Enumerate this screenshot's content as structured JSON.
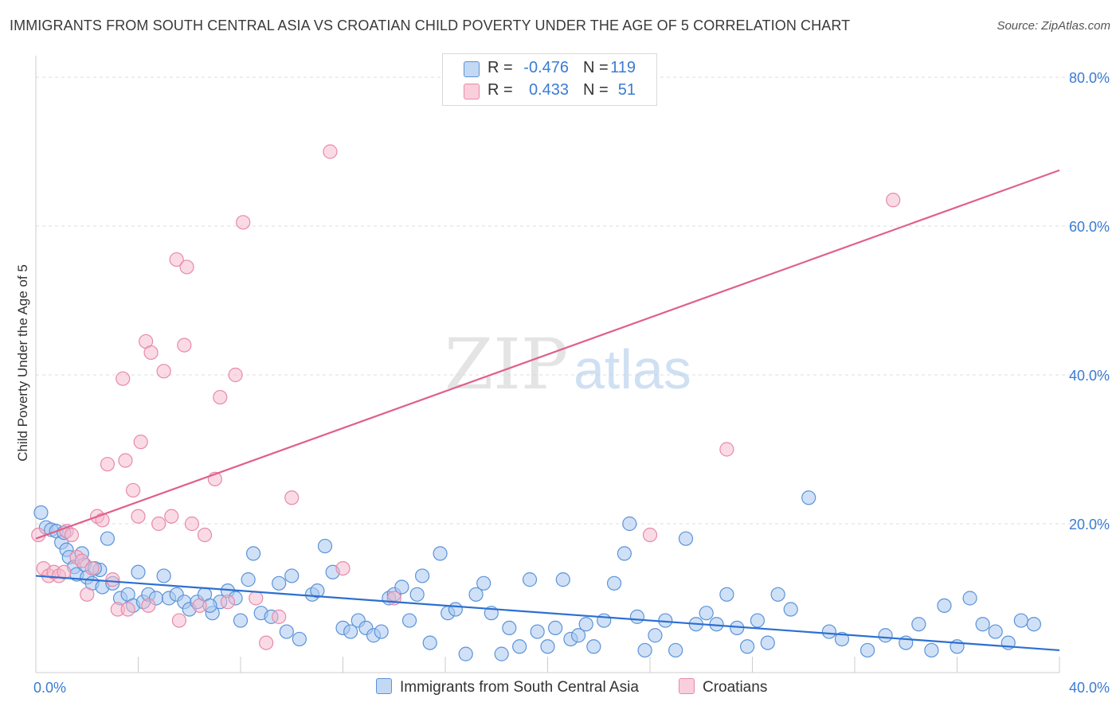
{
  "title": "IMMIGRANTS FROM SOUTH CENTRAL ASIA VS CROATIAN CHILD POVERTY UNDER THE AGE OF 5 CORRELATION CHART",
  "source": "Source: ZipAtlas.com",
  "watermark": {
    "zip": "ZIP",
    "atlas": "atlas"
  },
  "colors": {
    "blue_fill": "#a9c8f0",
    "blue_stroke": "#5b93d8",
    "blue_line": "#2c6fd1",
    "pink_fill": "#f6b8cb",
    "pink_stroke": "#e88aa8",
    "pink_line": "#e0608c",
    "axis_label": "#3a7bd5",
    "grid": "#dddddd"
  },
  "legend": {
    "rows": [
      {
        "r_label": "R =",
        "r_value": "-0.476",
        "n_label": "N =",
        "n_value": "119"
      },
      {
        "r_label": "R =",
        "r_value": "0.433",
        "n_label": "N =",
        "n_value": "51"
      }
    ]
  },
  "bottom_legend": {
    "series1": "Immigrants from South Central Asia",
    "series2": "Croatians"
  },
  "chart_data": {
    "type": "scatter",
    "title": "IMMIGRANTS FROM SOUTH CENTRAL ASIA VS CROATIAN CHILD POVERTY UNDER THE AGE OF 5 CORRELATION CHART",
    "xlabel": "",
    "ylabel": "Child Poverty Under the Age of 5",
    "xlim": [
      0,
      40
    ],
    "ylim": [
      0,
      80
    ],
    "x_tick_labels": [
      "0.0%",
      "40.0%"
    ],
    "y_tick_labels": [
      "20.0%",
      "40.0%",
      "60.0%",
      "80.0%"
    ],
    "y_ticks": [
      20,
      40,
      60,
      80
    ],
    "grid": true,
    "series": [
      {
        "name": "Immigrants from South Central Asia",
        "color": "#a9c8f0",
        "trend": {
          "x0": 0,
          "y0": 13.0,
          "x1": 40,
          "y1": 3.0
        },
        "points": [
          [
            0.2,
            21.5
          ],
          [
            0.4,
            19.5
          ],
          [
            0.6,
            19.2
          ],
          [
            0.8,
            19.0
          ],
          [
            1.0,
            17.5
          ],
          [
            1.2,
            16.5
          ],
          [
            1.3,
            15.5
          ],
          [
            1.5,
            14.2
          ],
          [
            1.6,
            13.2
          ],
          [
            1.8,
            16.0
          ],
          [
            1.9,
            14.5
          ],
          [
            2.0,
            12.8
          ],
          [
            2.2,
            12.0
          ],
          [
            2.5,
            13.8
          ],
          [
            2.6,
            11.5
          ],
          [
            2.8,
            18.0
          ],
          [
            3.0,
            12.0
          ],
          [
            3.3,
            10.0
          ],
          [
            3.6,
            10.5
          ],
          [
            3.8,
            9.0
          ],
          [
            4.0,
            13.5
          ],
          [
            4.2,
            9.5
          ],
          [
            4.4,
            10.5
          ],
          [
            4.7,
            10.0
          ],
          [
            5.0,
            13.0
          ],
          [
            5.2,
            10.0
          ],
          [
            5.5,
            10.5
          ],
          [
            5.8,
            9.5
          ],
          [
            6.0,
            8.5
          ],
          [
            6.3,
            9.5
          ],
          [
            6.6,
            10.5
          ],
          [
            6.9,
            8.0
          ],
          [
            7.2,
            9.5
          ],
          [
            7.5,
            11.0
          ],
          [
            7.8,
            10.0
          ],
          [
            8.0,
            7.0
          ],
          [
            8.3,
            12.5
          ],
          [
            8.5,
            16.0
          ],
          [
            8.8,
            8.0
          ],
          [
            9.2,
            7.5
          ],
          [
            9.5,
            12.0
          ],
          [
            10.0,
            13.0
          ],
          [
            10.3,
            4.5
          ],
          [
            10.8,
            10.5
          ],
          [
            11.0,
            11.0
          ],
          [
            11.3,
            17.0
          ],
          [
            11.6,
            13.5
          ],
          [
            12.0,
            6.0
          ],
          [
            12.3,
            5.5
          ],
          [
            12.6,
            7.0
          ],
          [
            12.9,
            6.0
          ],
          [
            13.2,
            5.0
          ],
          [
            13.5,
            5.5
          ],
          [
            13.8,
            10.0
          ],
          [
            14.0,
            10.5
          ],
          [
            14.3,
            11.5
          ],
          [
            14.6,
            7.0
          ],
          [
            14.9,
            10.5
          ],
          [
            15.1,
            13.0
          ],
          [
            15.4,
            4.0
          ],
          [
            15.8,
            16.0
          ],
          [
            16.1,
            8.0
          ],
          [
            16.4,
            8.5
          ],
          [
            16.8,
            2.5
          ],
          [
            17.2,
            10.5
          ],
          [
            17.5,
            12.0
          ],
          [
            17.8,
            8.0
          ],
          [
            18.2,
            2.5
          ],
          [
            18.5,
            6.0
          ],
          [
            18.9,
            3.5
          ],
          [
            19.3,
            12.5
          ],
          [
            19.6,
            5.5
          ],
          [
            20.0,
            3.5
          ],
          [
            20.3,
            6.0
          ],
          [
            20.6,
            12.5
          ],
          [
            20.9,
            4.5
          ],
          [
            21.2,
            5.0
          ],
          [
            21.5,
            6.5
          ],
          [
            21.8,
            3.5
          ],
          [
            22.2,
            7.0
          ],
          [
            22.6,
            12.0
          ],
          [
            23.0,
            16.0
          ],
          [
            23.2,
            20.0
          ],
          [
            23.5,
            7.5
          ],
          [
            23.8,
            3.0
          ],
          [
            24.2,
            5.0
          ],
          [
            24.6,
            7.0
          ],
          [
            25.0,
            3.0
          ],
          [
            25.4,
            18.0
          ],
          [
            25.8,
            6.5
          ],
          [
            26.2,
            8.0
          ],
          [
            26.6,
            6.5
          ],
          [
            27.0,
            10.5
          ],
          [
            27.4,
            6.0
          ],
          [
            27.8,
            3.5
          ],
          [
            28.2,
            7.0
          ],
          [
            28.6,
            4.0
          ],
          [
            29.0,
            10.5
          ],
          [
            29.5,
            8.5
          ],
          [
            30.2,
            23.5
          ],
          [
            31.0,
            5.5
          ],
          [
            31.5,
            4.5
          ],
          [
            32.5,
            3.0
          ],
          [
            33.2,
            5.0
          ],
          [
            34.0,
            4.0
          ],
          [
            34.5,
            6.5
          ],
          [
            35.0,
            3.0
          ],
          [
            35.5,
            9.0
          ],
          [
            36.0,
            3.5
          ],
          [
            36.5,
            10.0
          ],
          [
            37.0,
            6.5
          ],
          [
            37.5,
            5.5
          ],
          [
            38.0,
            4.0
          ],
          [
            38.5,
            7.0
          ],
          [
            39.0,
            6.5
          ],
          [
            1.1,
            18.8
          ],
          [
            2.3,
            14.0
          ],
          [
            6.8,
            9.0
          ],
          [
            9.8,
            5.5
          ]
        ]
      },
      {
        "name": "Croatians",
        "color": "#f6b8cb",
        "trend": {
          "x0": 0,
          "y0": 18.0,
          "x1": 40,
          "y1": 67.5
        },
        "points": [
          [
            0.1,
            18.5
          ],
          [
            0.3,
            14.0
          ],
          [
            0.5,
            13.0
          ],
          [
            0.7,
            13.5
          ],
          [
            0.9,
            13.0
          ],
          [
            1.1,
            13.5
          ],
          [
            1.2,
            19.0
          ],
          [
            1.4,
            18.5
          ],
          [
            1.6,
            15.5
          ],
          [
            1.8,
            15.0
          ],
          [
            2.0,
            10.5
          ],
          [
            2.2,
            14.0
          ],
          [
            2.4,
            21.0
          ],
          [
            2.6,
            20.5
          ],
          [
            2.8,
            28.0
          ],
          [
            3.0,
            12.5
          ],
          [
            3.2,
            8.5
          ],
          [
            3.4,
            39.5
          ],
          [
            3.5,
            28.5
          ],
          [
            3.6,
            8.5
          ],
          [
            3.8,
            24.5
          ],
          [
            4.0,
            21.0
          ],
          [
            4.1,
            31.0
          ],
          [
            4.3,
            44.5
          ],
          [
            4.4,
            9.0
          ],
          [
            4.5,
            43.0
          ],
          [
            4.8,
            20.0
          ],
          [
            5.0,
            40.5
          ],
          [
            5.3,
            21.0
          ],
          [
            5.5,
            55.5
          ],
          [
            5.6,
            7.0
          ],
          [
            5.8,
            44.0
          ],
          [
            5.9,
            54.5
          ],
          [
            6.1,
            20.0
          ],
          [
            6.4,
            9.0
          ],
          [
            6.6,
            18.5
          ],
          [
            7.0,
            26.0
          ],
          [
            7.2,
            37.0
          ],
          [
            7.5,
            9.5
          ],
          [
            7.8,
            40.0
          ],
          [
            8.1,
            60.5
          ],
          [
            8.6,
            10.0
          ],
          [
            9.0,
            4.0
          ],
          [
            9.5,
            7.5
          ],
          [
            10.0,
            23.5
          ],
          [
            11.5,
            70.0
          ],
          [
            12.0,
            14.0
          ],
          [
            14.0,
            10.0
          ],
          [
            24.0,
            18.5
          ],
          [
            27.0,
            30.0
          ],
          [
            33.5,
            63.5
          ]
        ]
      }
    ]
  }
}
